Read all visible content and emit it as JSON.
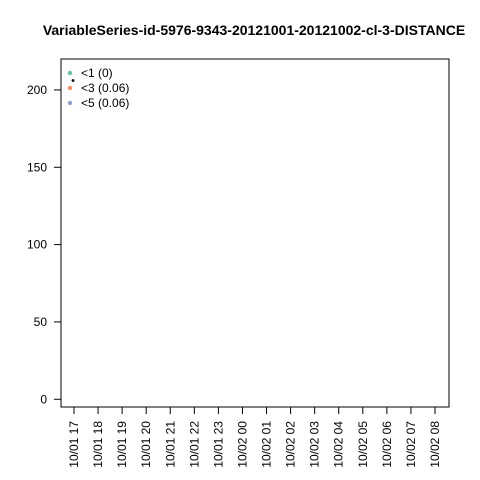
{
  "chart_data": {
    "type": "scatter",
    "title": "VariableSeries-id-5976-9343-20121001-20121002-cl-3-DISTANCE",
    "xlabel": "",
    "ylabel": "",
    "ylim": [
      -5,
      220
    ],
    "y_ticks": [
      0,
      50,
      100,
      150,
      200
    ],
    "x_categories": [
      "10/01 17",
      "10/01 18",
      "10/01 19",
      "10/01 20",
      "10/01 21",
      "10/01 22",
      "10/01 23",
      "10/02 00",
      "10/02 01",
      "10/02 02",
      "10/02 03",
      "10/02 04",
      "10/02 05",
      "10/02 06",
      "10/02 07",
      "10/02 08"
    ],
    "grid": false,
    "legend_position": "top-left",
    "series": [
      {
        "name": "<1 (0)",
        "color": "#66c2a5",
        "values": []
      },
      {
        "name": "<3 (0.06)",
        "color": "#fc8d62",
        "values": []
      },
      {
        "name": "<5 (0.06)",
        "color": "#8da0cb",
        "values": []
      }
    ]
  }
}
